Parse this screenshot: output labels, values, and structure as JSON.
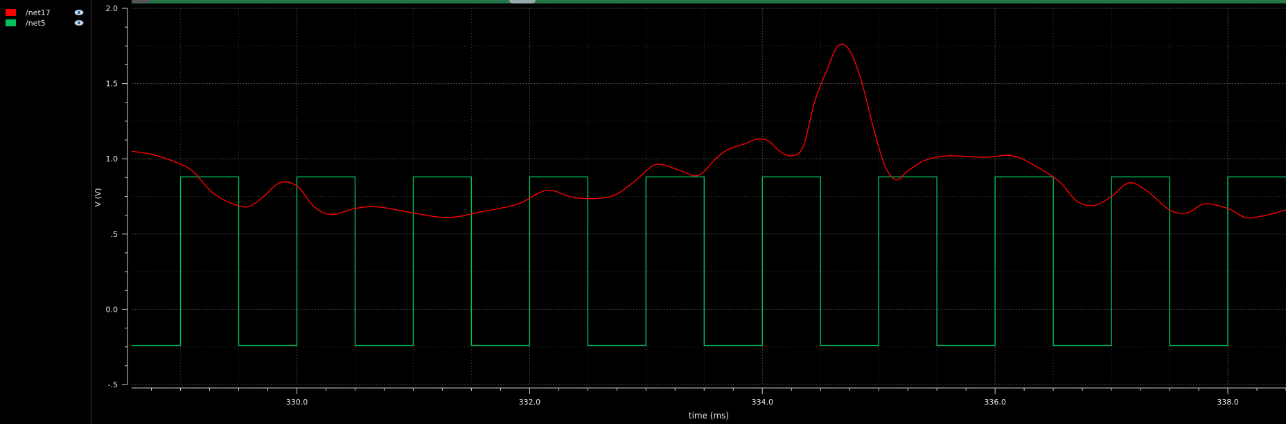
{
  "legend": {
    "items": [
      {
        "name": "/net17",
        "color": "#ff0000",
        "visibility_icon": "eye-icon"
      },
      {
        "name": "/net5",
        "color": "#00c060",
        "visibility_icon": "eye-icon"
      }
    ]
  },
  "chart_data": {
    "type": "line",
    "xlabel": "time (ms)",
    "ylabel": "V (V)",
    "xlim": [
      328.58,
      338.5
    ],
    "ylim": [
      -0.5,
      2.0
    ],
    "x_ticks": [
      330.0,
      332.0,
      334.0,
      336.0,
      338.0
    ],
    "x_tick_labels": [
      "330.0",
      "332.0",
      "334.0",
      "336.0",
      "338.0"
    ],
    "y_ticks": [
      -0.5,
      0.0,
      0.5,
      1.0,
      1.5,
      2.0
    ],
    "y_tick_labels": [
      "-.5",
      "0.0",
      ".5",
      "1.0",
      "1.5",
      "2.0"
    ],
    "grid": true,
    "legend_position": "left panel",
    "background": "#000000",
    "series": [
      {
        "name": "/net17",
        "color": "#ff0000",
        "x": [
          328.58,
          328.75,
          328.95,
          329.1,
          329.3,
          329.55,
          329.7,
          329.85,
          330.0,
          330.15,
          330.3,
          330.5,
          330.7,
          331.0,
          331.3,
          331.6,
          331.9,
          332.15,
          332.4,
          332.7,
          332.9,
          333.05,
          333.15,
          333.3,
          333.45,
          333.6,
          333.7,
          333.85,
          333.95,
          334.05,
          334.15,
          334.25,
          334.35,
          334.45,
          334.55,
          334.65,
          334.75,
          334.85,
          334.95,
          335.05,
          335.15,
          335.25,
          335.4,
          335.6,
          335.9,
          336.15,
          336.35,
          336.55,
          336.7,
          336.85,
          337.0,
          337.15,
          337.3,
          337.5,
          337.65,
          337.8,
          338.0,
          338.15,
          338.3,
          338.5
        ],
        "y": [
          1.05,
          1.03,
          0.98,
          0.92,
          0.76,
          0.68,
          0.74,
          0.84,
          0.82,
          0.68,
          0.63,
          0.67,
          0.68,
          0.64,
          0.61,
          0.65,
          0.7,
          0.79,
          0.74,
          0.75,
          0.85,
          0.95,
          0.96,
          0.92,
          0.89,
          1.0,
          1.06,
          1.1,
          1.13,
          1.12,
          1.05,
          1.02,
          1.08,
          1.38,
          1.58,
          1.75,
          1.72,
          1.52,
          1.22,
          0.96,
          0.86,
          0.92,
          0.99,
          1.02,
          1.01,
          1.02,
          0.95,
          0.85,
          0.72,
          0.69,
          0.75,
          0.84,
          0.79,
          0.66,
          0.64,
          0.7,
          0.67,
          0.61,
          0.62,
          0.66
        ]
      },
      {
        "name": "/net5",
        "color": "#00c060",
        "low": -0.24,
        "high": 0.88,
        "rising_edges": [
          329.0,
          330.0,
          331.0,
          332.0,
          333.0,
          334.0,
          335.0,
          336.0,
          337.0,
          338.0
        ],
        "falling_edges": [
          329.5,
          330.5,
          331.5,
          332.5,
          333.5,
          334.5,
          335.5,
          336.5,
          337.5
        ]
      }
    ]
  }
}
